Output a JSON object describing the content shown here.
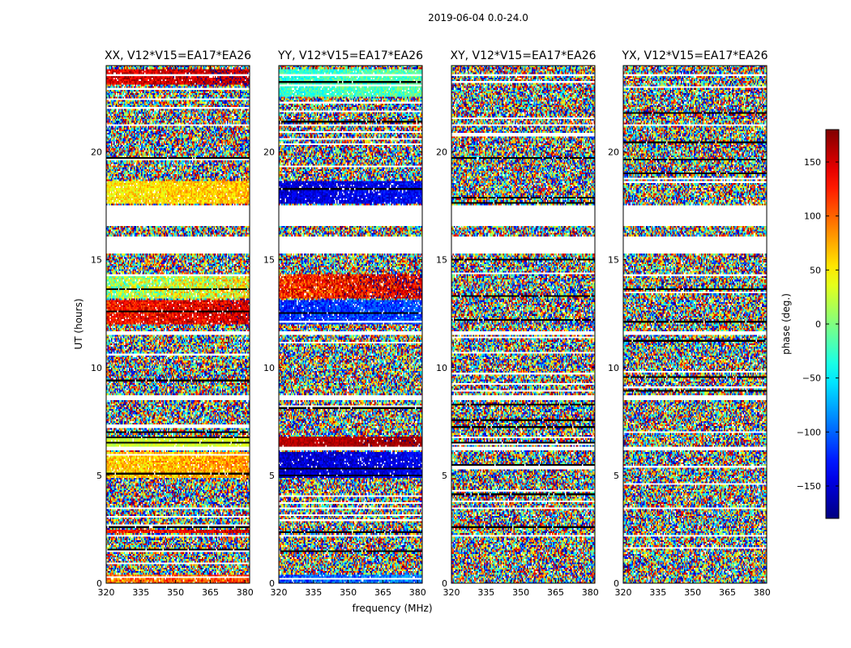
{
  "chart_data": {
    "type": "heatmap",
    "title": "2019-06-04 0.0-24.0",
    "xlabel": "frequency (MHz)",
    "ylabel": "UT (hours)",
    "xlim": [
      320,
      382
    ],
    "ylim": [
      0,
      24
    ],
    "x_ticks": [
      320,
      335,
      350,
      365,
      380
    ],
    "y_ticks": [
      0,
      5,
      10,
      15,
      20
    ],
    "colorbar": {
      "label": "phase (deg.)",
      "range": [
        -180,
        180
      ],
      "ticks": [
        150,
        100,
        50,
        0,
        -50,
        -100,
        -150
      ],
      "colormap": "jet"
    },
    "panels": [
      {
        "title": "XX, V12*V15=EA17*EA26",
        "pol": "XX",
        "structured_bands": [
          {
            "t": [
              0.0,
              0.4
            ],
            "phase": 90,
            "spread": 40
          },
          {
            "t": [
              2.3,
              2.5
            ],
            "phase": 130,
            "spread": 30
          },
          {
            "t": [
              4.9,
              6.1
            ],
            "phase": 60,
            "spread": 35
          },
          {
            "t": [
              6.3,
              6.8
            ],
            "phase": 25,
            "spread": 15
          },
          {
            "t": [
              12.0,
              13.1
            ],
            "phase": 130,
            "spread": 35
          },
          {
            "t": [
              13.2,
              14.3
            ],
            "phase": 10,
            "spread": 60
          },
          {
            "t": [
              17.6,
              18.6
            ],
            "phase": 50,
            "spread": 30
          },
          {
            "t": [
              23.1,
              23.8
            ],
            "phase": 145,
            "spread": 30
          }
        ]
      },
      {
        "title": "YY, V12*V15=EA17*EA26",
        "pol": "YY",
        "structured_bands": [
          {
            "t": [
              0.0,
              0.4
            ],
            "phase": -110,
            "spread": 35
          },
          {
            "t": [
              4.9,
              6.1
            ],
            "phase": -155,
            "spread": 25
          },
          {
            "t": [
              6.3,
              6.8
            ],
            "phase": 160,
            "spread": 15
          },
          {
            "t": [
              12.0,
              13.1
            ],
            "phase": -125,
            "spread": 30
          },
          {
            "t": [
              13.2,
              14.3
            ],
            "phase": 120,
            "spread": 50
          },
          {
            "t": [
              17.6,
              18.6
            ],
            "phase": -150,
            "spread": 25
          },
          {
            "t": [
              22.6,
              23.8
            ],
            "phase": -30,
            "spread": 30
          }
        ]
      },
      {
        "title": "XY, V12*V15=EA17*EA26",
        "pol": "XY",
        "structured_bands": []
      },
      {
        "title": "YX, V12*V15=EA17*EA26",
        "pol": "YX",
        "structured_bands": []
      }
    ],
    "flagged_gaps_hours": [
      [
        2.15,
        2.25
      ],
      [
        3.45,
        3.55
      ],
      [
        6.15,
        6.3
      ],
      [
        8.5,
        8.7
      ],
      [
        11.5,
        11.7
      ],
      [
        15.3,
        16.1
      ],
      [
        16.55,
        17.5
      ],
      [
        21.2,
        21.3
      ],
      [
        23.5,
        23.6
      ]
    ]
  }
}
